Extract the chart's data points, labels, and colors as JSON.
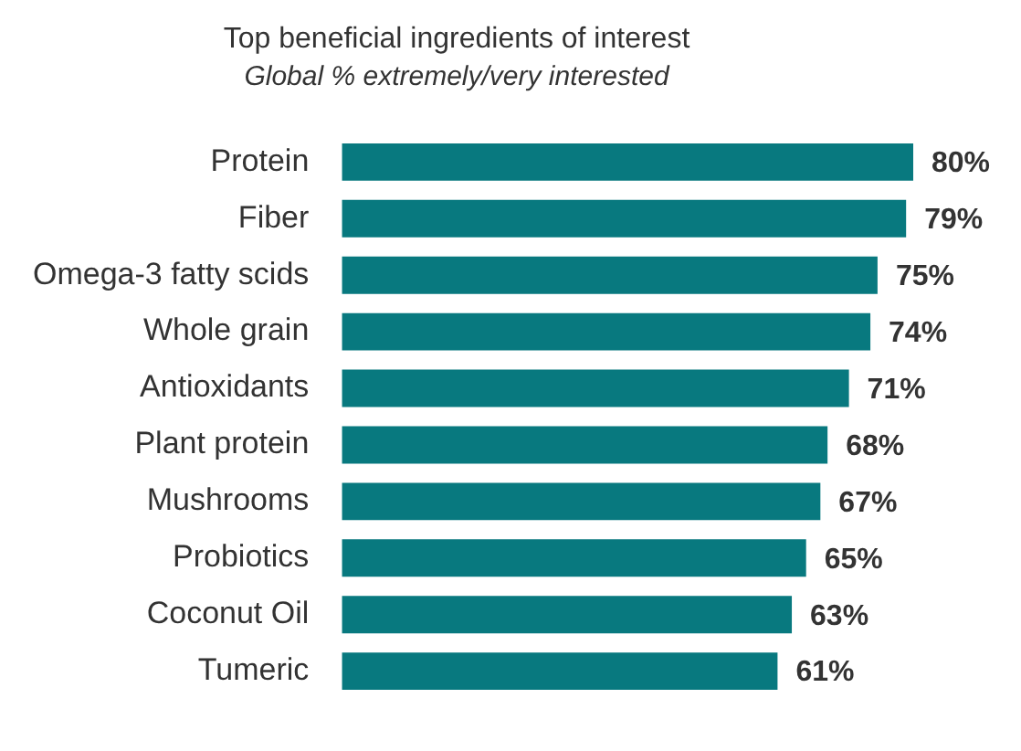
{
  "chart_data": {
    "type": "bar",
    "orientation": "horizontal",
    "title": "Top beneficial ingredients of interest",
    "subtitle": "Global % extremely/very interested",
    "categories": [
      "Protein",
      "Fiber",
      "Omega-3 fatty scids",
      "Whole grain",
      "Antioxidants",
      "Plant protein",
      "Mushrooms",
      "Probiotics",
      "Coconut Oil",
      "Tumeric"
    ],
    "values": [
      80,
      79,
      75,
      74,
      71,
      68,
      67,
      65,
      63,
      61
    ],
    "value_labels": [
      "80%",
      "79%",
      "75%",
      "74%",
      "71%",
      "68%",
      "67%",
      "65%",
      "63%",
      "61%"
    ],
    "color": "#08797f",
    "legend": false
  }
}
